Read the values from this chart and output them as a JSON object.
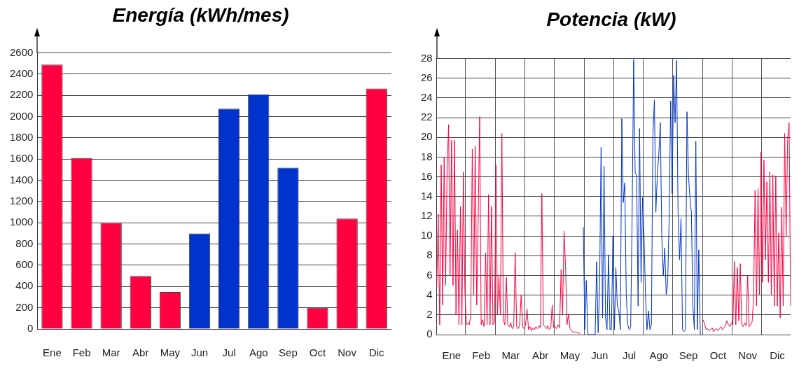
{
  "chart_data": [
    {
      "type": "bar",
      "title": "Energía (kWh/mes)",
      "categories": [
        "Ene",
        "Feb",
        "Mar",
        "Abr",
        "May",
        "Jun",
        "Jul",
        "Ago",
        "Sep",
        "Oct",
        "Nov",
        "Dic"
      ],
      "values": [
        2490,
        1610,
        1000,
        500,
        350,
        900,
        2075,
        2210,
        1520,
        200,
        1040,
        2265
      ],
      "colors": [
        "#ff0040",
        "#ff0040",
        "#ff0040",
        "#ff0040",
        "#ff0040",
        "#0033cc",
        "#0033cc",
        "#0033cc",
        "#0033cc",
        "#ff0040",
        "#ff0040",
        "#ff0040"
      ],
      "ylim": [
        0,
        2600
      ],
      "yticks": [
        0,
        200,
        400,
        600,
        800,
        1000,
        1200,
        1400,
        1600,
        1800,
        2000,
        2200,
        2400,
        2600
      ],
      "grid": "y"
    },
    {
      "type": "line",
      "title": "Potencia (kW)",
      "categories": [
        null,
        null,
        null,
        null,
        null,
        null,
        null,
        null,
        null,
        null,
        "Ene",
        null,
        null,
        null,
        null,
        null,
        null,
        null,
        null,
        null,
        null,
        null,
        null,
        null,
        null,
        null,
        null,
        null,
        null,
        null,
        "Feb",
        null,
        null,
        null,
        null,
        null,
        null,
        null,
        null,
        null,
        null,
        null,
        null,
        null,
        null,
        null,
        null,
        null,
        null,
        null,
        "Mar",
        null,
        null,
        null,
        null,
        null,
        null,
        null,
        null,
        null,
        null,
        null,
        null,
        null,
        null,
        null,
        null,
        null,
        null,
        null,
        "Abr",
        null,
        null,
        null,
        null,
        null,
        null,
        null,
        null,
        null,
        null,
        null,
        null,
        null,
        null,
        null,
        null,
        null,
        null,
        null,
        "May",
        null,
        null,
        null,
        null,
        null,
        null,
        null,
        null,
        null,
        null,
        null,
        null,
        null,
        null,
        null,
        null,
        null,
        null,
        null,
        "Jun",
        null,
        null,
        null,
        null,
        null,
        null,
        null,
        null,
        null,
        null,
        null,
        null,
        null,
        null,
        null,
        null,
        null,
        null,
        null,
        "Jul",
        null,
        null,
        null,
        null,
        null,
        null,
        null,
        null,
        null,
        null,
        null,
        null,
        null,
        null,
        null,
        null,
        null,
        null,
        null,
        "Ago",
        null,
        null,
        null,
        null,
        null,
        null,
        null,
        null,
        null,
        null,
        null,
        null,
        null,
        null,
        null,
        null,
        null,
        null,
        null,
        "Sep",
        null,
        null,
        null,
        null,
        null,
        null,
        null,
        null,
        null,
        null,
        null,
        null,
        null,
        null,
        null,
        null,
        null,
        null,
        null,
        "Oct",
        null,
        null,
        null,
        null,
        null,
        null,
        null,
        null,
        null,
        null,
        null,
        null,
        null,
        null,
        null,
        null,
        null,
        null,
        null,
        "Nov",
        null,
        null,
        null,
        null,
        null,
        null,
        null,
        null,
        null,
        null,
        null,
        null,
        null,
        null,
        null,
        null,
        null,
        null,
        null,
        "Dic",
        null,
        null,
        null,
        null,
        null,
        null,
        null,
        null,
        null
      ],
      "ylim": [
        0,
        28
      ],
      "yticks": [
        0,
        2,
        4,
        6,
        8,
        10,
        12,
        14,
        16,
        18,
        20,
        22,
        24,
        26,
        28
      ],
      "grid": true,
      "series": [
        {
          "color": "#ff0040",
          "values": [
            4.8,
            12.2,
            1,
            17.2,
            3,
            18,
            5,
            16.7,
            21.3,
            6,
            19.7,
            5,
            19.7,
            2,
            10.6,
            1,
            13,
            1,
            16.5,
            4.5,
            1,
            1.2,
            1,
            2,
            18.8,
            4,
            19.1,
            3,
            11.7,
            22.1,
            1,
            1.5,
            0.8,
            8.3,
            1,
            14.2,
            1,
            13,
            1,
            1.2,
            17.2,
            2,
            6,
            2,
            20.4,
            1.5,
            1,
            5.8,
            1,
            0.8,
            1.2,
            0.6,
            0.8,
            8.3,
            0.8,
            0.6,
            1,
            4,
            0.8,
            0.6,
            1,
            2.6,
            0.5,
            0.8,
            0.4,
            0.7,
            0.5,
            0.8,
            0.6,
            0.9,
            0.7,
            14.3,
            1,
            0.8,
            0.6,
            0.9,
            0.5,
            0.7,
            3,
            0.7,
            0.8,
            0.6,
            1,
            0.7,
            6.6,
            2,
            10.5,
            6.9,
            1,
            2.1,
            0.6,
            0.4,
            0.3,
            0.2,
            0.3,
            0.2,
            0.1,
            0.2,
            null,
            null,
            null,
            null,
            null,
            null,
            null,
            null,
            null,
            null,
            null,
            null,
            null,
            null,
            null,
            null,
            null,
            null,
            null,
            null,
            null,
            null,
            null,
            null,
            null,
            null,
            null,
            null,
            null,
            null,
            null,
            null,
            null,
            null,
            null,
            null,
            null,
            null,
            null,
            null,
            null,
            null,
            null,
            null,
            null,
            null,
            null,
            null,
            null,
            null,
            null,
            null,
            null,
            null,
            null,
            null,
            null,
            null,
            null,
            null,
            null,
            null,
            null,
            null,
            null,
            null,
            null,
            null,
            null,
            null,
            null,
            null,
            null,
            null,
            null,
            null,
            null,
            null,
            null,
            null,
            null,
            null,
            1.5,
            1,
            0.5,
            0.6,
            0.4,
            0.5,
            0.7,
            0.3,
            0.5,
            0.6,
            0.4,
            0.6,
            0.8,
            0.5,
            0.7,
            0.9,
            1.4,
            1,
            0.8,
            1.2,
            1,
            7.4,
            1,
            6.8,
            1.4,
            7.2,
            1,
            0.8,
            1.2,
            0.9,
            6,
            0.8,
            1,
            1.3,
            3.6,
            14.6,
            2.9,
            14.8,
            4,
            18.5,
            5.3,
            17.7,
            7.6,
            15.5,
            5.3,
            16.5,
            4,
            16.2,
            2.9,
            16.1,
            2.9,
            10.3,
            1.7,
            12.9,
            2.9,
            20.4,
            10,
            19.8,
            21.5,
            2.9
          ]
        },
        {
          "color": "#0033cc",
          "values": [
            null,
            null,
            null,
            null,
            null,
            null,
            null,
            null,
            null,
            null,
            null,
            null,
            null,
            null,
            null,
            null,
            null,
            null,
            null,
            null,
            null,
            null,
            null,
            null,
            null,
            null,
            null,
            null,
            null,
            null,
            null,
            null,
            null,
            null,
            null,
            null,
            null,
            null,
            null,
            null,
            null,
            null,
            null,
            null,
            null,
            null,
            null,
            null,
            null,
            null,
            null,
            null,
            null,
            null,
            null,
            null,
            null,
            null,
            null,
            null,
            null,
            null,
            null,
            null,
            null,
            null,
            null,
            null,
            null,
            null,
            null,
            null,
            null,
            null,
            null,
            null,
            null,
            null,
            null,
            null,
            null,
            null,
            null,
            null,
            null,
            null,
            null,
            null,
            null,
            null,
            null,
            null,
            null,
            null,
            null,
            null,
            null,
            null,
            null,
            10.9,
            0.5,
            5.5,
            0.1,
            0,
            0,
            0,
            0,
            0,
            7.4,
            0.2,
            5,
            19,
            1.7,
            17.1,
            1.7,
            0.5,
            8.1,
            0.5,
            0.5,
            10,
            0.5,
            6.8,
            2.9,
            2.4,
            0.5,
            21.9,
            13.4,
            15.4,
            4.1,
            1,
            0.5,
            0.8,
            12.4,
            27.9,
            16.5,
            16.1,
            2.9,
            20.9,
            5.3,
            13.9,
            10,
            4,
            0.5,
            2.4,
            0.5,
            1,
            20.2,
            23.8,
            12.4,
            16.2,
            18.3,
            21.5,
            10,
            6,
            8.8,
            4,
            5.3,
            12,
            23.7,
            14.3,
            26.3,
            21.5,
            27.8,
            12.4,
            7.6,
            11.8,
            0.5,
            0.3,
            0.5,
            22.6,
            16.2,
            13.9,
            12.4,
            2.9,
            0.5,
            19.6,
            0.5,
            8.6,
            0,
            null,
            null,
            null,
            null,
            null,
            null,
            null,
            null,
            null,
            null,
            null,
            null,
            null,
            null,
            null,
            null,
            null,
            null,
            null,
            null,
            null,
            null,
            null,
            null,
            null,
            null,
            null,
            null,
            null,
            null,
            null,
            null,
            null,
            null,
            null,
            null,
            null,
            null,
            null,
            null,
            null,
            null,
            null,
            null,
            null,
            null,
            null,
            null,
            null,
            null,
            null,
            null,
            null,
            null,
            null,
            null,
            null,
            null,
            null,
            null,
            null
          ]
        }
      ]
    }
  ]
}
